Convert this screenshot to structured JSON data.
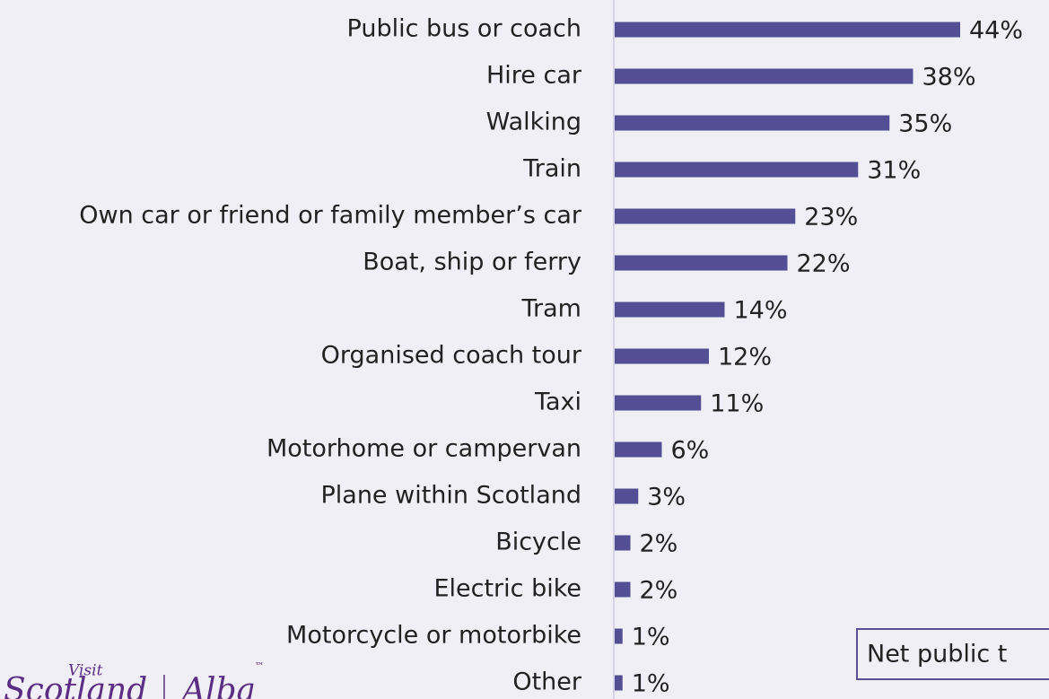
{
  "chart_data": {
    "type": "barh",
    "categories": [
      "Public bus or coach",
      "Hire car",
      "Walking",
      "Train",
      "Own car or friend or family member’s car",
      "Boat, ship or ferry",
      "Tram",
      "Organised coach tour",
      "Taxi",
      "Motorhome or campervan",
      "Plane within Scotland",
      "Bicycle",
      "Electric bike",
      "Motorcycle or motorbike",
      "Other"
    ],
    "values": [
      44,
      38,
      35,
      31,
      23,
      22,
      14,
      12,
      11,
      6,
      3,
      2,
      2,
      1,
      1
    ],
    "value_labels": [
      "44%",
      "38%",
      "35%",
      "31%",
      "23%",
      "22%",
      "14%",
      "12%",
      "11%",
      "6%",
      "3%",
      "2%",
      "2%",
      "1%",
      "1%"
    ],
    "color": "#544f94",
    "annotation": "Net public t"
  },
  "logo": {
    "visit": "Visit",
    "scotland": "Scotland",
    "alba": "Alba",
    "tm": "™"
  }
}
